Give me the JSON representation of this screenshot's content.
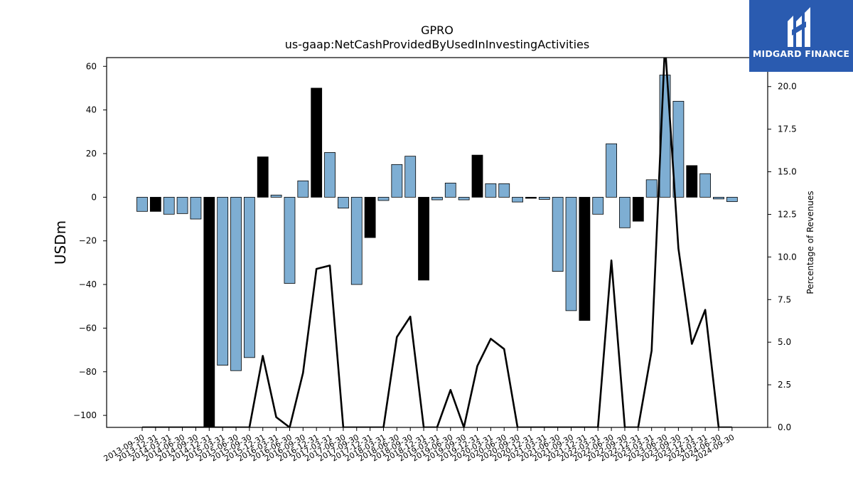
{
  "chart_data": {
    "type": "bar",
    "title": "GPRO",
    "subtitle": "us-gaap:NetCashProvidedByUsedInInvestingActivities",
    "ylabel": "USDm",
    "y2label": "Percentage of Revenues",
    "ylim": [
      -105.5,
      64
    ],
    "y2lim": [
      0,
      21.7
    ],
    "yticks": [
      60,
      40,
      20,
      0,
      -20,
      -40,
      -60,
      -80,
      -100
    ],
    "y2ticks": [
      0.0,
      2.5,
      5.0,
      7.5,
      10.0,
      12.5,
      15.0,
      17.5,
      20.0
    ],
    "colors": {
      "bar_default": "#7eaed3",
      "bar_highlight": "#000000",
      "line": "#000000"
    },
    "categories": [
      "2013-09-30",
      "2013-12-31",
      "2014-03-31",
      "2014-06-30",
      "2014-09-30",
      "2014-12-31",
      "2015-03-31",
      "2015-06-30",
      "2015-09-30",
      "2015-12-31",
      "2016-03-31",
      "2016-06-30",
      "2016-09-30",
      "2016-12-31",
      "2017-03-31",
      "2017-06-30",
      "2017-09-30",
      "2017-12-31",
      "2018-03-31",
      "2018-06-30",
      "2018-09-30",
      "2018-12-31",
      "2019-03-31",
      "2019-06-30",
      "2019-09-30",
      "2019-12-31",
      "2020-03-31",
      "2020-06-30",
      "2020-09-30",
      "2020-12-31",
      "2021-03-31",
      "2021-06-30",
      "2021-09-30",
      "2021-12-31",
      "2022-03-31",
      "2022-06-30",
      "2022-09-30",
      "2022-12-31",
      "2023-03-31",
      "2023-06-30",
      "2023-09-30",
      "2023-12-31",
      "2024-03-31",
      "2024-06-30",
      "2024-09-30"
    ],
    "values": [
      -6.5,
      -6.5,
      -7.8,
      -7.5,
      -10,
      -108,
      -77,
      -79.5,
      -73.5,
      18.5,
      1,
      -39.5,
      7.5,
      50,
      20.5,
      -5,
      -40,
      -18.5,
      -1.5,
      15,
      18.8,
      -38,
      -1.2,
      6.5,
      -1.2,
      19.3,
      6.2,
      6.2,
      -2.2,
      -0.5,
      -1,
      -34,
      -52,
      -56.5,
      -7.8,
      24.5,
      -14,
      -11,
      8,
      56,
      44,
      14.5,
      10.8,
      -0.8,
      -2
    ],
    "highlight": [
      false,
      true,
      false,
      false,
      false,
      true,
      false,
      false,
      false,
      true,
      false,
      false,
      false,
      true,
      false,
      false,
      false,
      true,
      false,
      false,
      false,
      true,
      false,
      false,
      false,
      true,
      false,
      false,
      false,
      true,
      false,
      false,
      false,
      true,
      false,
      false,
      false,
      true,
      false,
      false,
      false,
      true,
      false,
      false,
      false
    ],
    "pct_revenue": [
      null,
      null,
      null,
      null,
      null,
      null,
      null,
      null,
      null,
      4.2,
      0.6,
      null,
      3.2,
      9.3,
      9.5,
      null,
      null,
      null,
      null,
      5.3,
      6.5,
      null,
      null,
      2.2,
      null,
      3.6,
      5.2,
      4.6,
      null,
      null,
      null,
      null,
      null,
      null,
      null,
      9.8,
      null,
      null,
      4.5,
      22.5,
      10.5,
      4.9,
      6.9,
      null,
      null
    ]
  },
  "logo": {
    "text": "MIDGARD FINANCE"
  }
}
